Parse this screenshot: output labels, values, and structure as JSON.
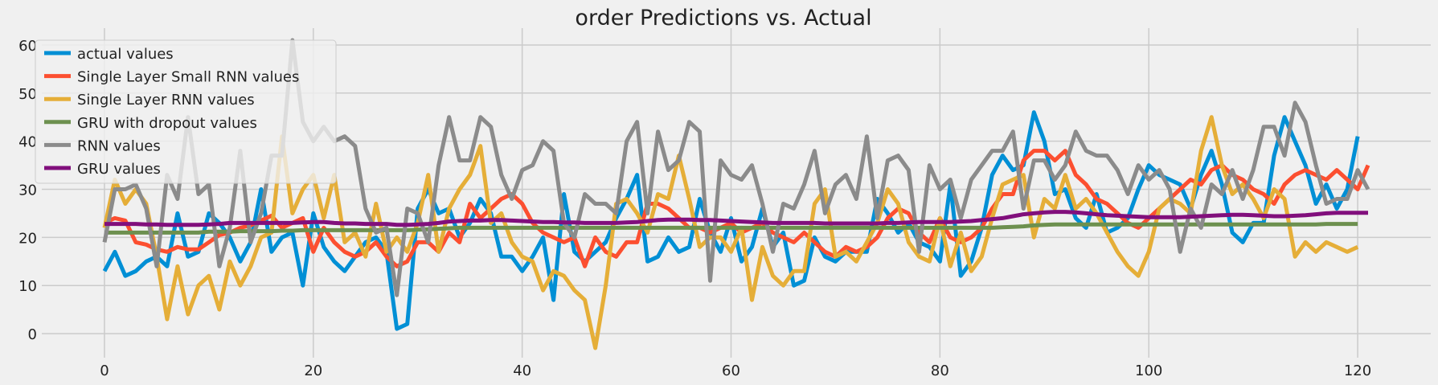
{
  "chart_data": {
    "type": "line",
    "title": "order Predictions vs. Actual",
    "xlabel": "",
    "ylabel": "",
    "xlim": [
      -6,
      127
    ],
    "ylim": [
      -5,
      63.5
    ],
    "xticks": [
      0,
      20,
      40,
      60,
      80,
      100,
      120
    ],
    "yticks": [
      0,
      10,
      20,
      30,
      40,
      50,
      60
    ],
    "grid": true,
    "legend_position": "top-left",
    "colors": {
      "background": "#f0f0f0",
      "grid": "#cbcbcb",
      "actual": "#008fd5",
      "small_rnn": "#fc4f30",
      "single_rnn": "#e5ae38",
      "gru_dropout": "#6d904f",
      "rnn": "#8b8b8b",
      "gru": "#810f7c"
    },
    "series": [
      {
        "name": "actual values",
        "color": "#008fd5",
        "values": [
          13,
          17,
          12,
          13,
          15,
          16,
          14,
          25,
          16,
          17,
          25,
          23,
          20,
          15,
          19,
          30,
          17,
          20,
          21,
          10,
          25,
          18,
          15,
          13,
          16,
          19,
          20,
          17,
          1,
          2,
          26,
          30,
          25,
          26,
          20,
          23,
          28,
          25,
          16,
          16,
          13,
          16,
          20,
          7,
          29,
          17,
          15,
          17,
          19,
          24,
          28,
          33,
          15,
          16,
          20,
          17,
          18,
          28,
          21,
          17,
          24,
          15,
          18,
          26,
          18,
          21,
          10,
          11,
          20,
          16,
          15,
          17,
          17,
          17,
          28,
          25,
          21,
          23,
          19,
          18,
          15,
          31,
          12,
          15,
          22,
          33,
          37,
          34,
          35,
          46,
          40,
          29,
          30,
          24,
          22,
          29,
          21,
          22,
          24,
          30,
          35,
          33,
          32,
          31,
          26,
          33,
          38,
          31,
          21,
          19,
          23,
          23,
          37,
          45,
          40,
          35,
          27,
          31,
          26,
          30,
          41
        ]
      },
      {
        "name": "Single Layer Small RNN values",
        "color": "#fc4f30",
        "values": [
          23,
          24,
          23.5,
          19,
          18.5,
          17.5,
          17,
          18,
          17.5,
          17.5,
          19,
          20.5,
          21,
          22,
          22.5,
          23.5,
          24.5,
          22,
          23,
          24,
          17,
          22,
          19,
          17,
          16,
          17,
          19,
          16,
          14,
          15,
          19,
          19,
          17,
          21,
          19,
          27,
          24,
          26,
          28,
          29,
          27,
          23,
          21,
          20,
          19,
          20,
          14,
          20,
          17,
          16,
          19,
          19,
          27,
          27,
          26,
          24,
          22,
          22,
          21,
          22,
          23,
          21,
          22,
          23,
          21,
          20,
          19,
          21,
          19,
          17,
          16,
          18,
          17,
          18,
          20,
          24,
          26,
          25,
          21,
          19,
          24,
          20,
          19,
          20,
          22,
          26,
          29,
          29,
          36,
          38,
          38,
          36,
          38,
          33,
          31,
          28,
          27,
          25,
          23,
          22,
          24,
          26,
          28,
          30,
          32,
          31,
          34,
          35,
          33,
          32,
          30,
          29,
          27,
          31,
          33,
          34,
          33,
          32,
          34,
          32,
          30,
          35
        ]
      },
      {
        "name": "Single Layer RNN values",
        "color": "#e5ae38",
        "values": [
          22,
          32,
          27,
          30,
          27,
          16,
          3,
          14,
          4,
          10,
          12,
          5,
          15,
          10,
          14,
          20,
          21,
          41,
          25,
          30,
          33,
          24,
          33,
          19,
          21,
          16,
          27,
          17,
          20,
          17,
          23,
          33,
          17,
          26,
          30,
          33,
          39,
          23,
          25,
          19,
          16,
          15,
          9,
          13,
          12,
          9,
          7,
          -3,
          10,
          27,
          28,
          25,
          21,
          29,
          28,
          37,
          28,
          18,
          20,
          20,
          17,
          22,
          7,
          18,
          12,
          10,
          13,
          13,
          27,
          30,
          16,
          17,
          15,
          19,
          23,
          30,
          27,
          19,
          16,
          15,
          24,
          14,
          21,
          13,
          16,
          24,
          31,
          32,
          33,
          20,
          28,
          26,
          33,
          26,
          28,
          25,
          21,
          17,
          14,
          12,
          17,
          26,
          28,
          27,
          25,
          38,
          45,
          35,
          29,
          31,
          28,
          24,
          30,
          28,
          16,
          19,
          17,
          19,
          18,
          17,
          18
        ]
      },
      {
        "name": "GRU with dropout values",
        "color": "#6d904f",
        "values": [
          21,
          21,
          21,
          21,
          21,
          21,
          21,
          21,
          21,
          21,
          21.2,
          21.2,
          21.2,
          21.3,
          21.3,
          21.3,
          21.3,
          21.4,
          21.4,
          21.5,
          21.5,
          21.5,
          21.5,
          21.5,
          21.5,
          21.5,
          21.5,
          21.5,
          21.5,
          21.5,
          21.6,
          21.7,
          21.8,
          21.9,
          22,
          22,
          22,
          22,
          22,
          22,
          22,
          22,
          22,
          22,
          22,
          22,
          22,
          22,
          22,
          22,
          22,
          22,
          22,
          22,
          22,
          22,
          22,
          22,
          22,
          22,
          22,
          22,
          22,
          22,
          22,
          22,
          22,
          22,
          22,
          22,
          22,
          22,
          22,
          22,
          22,
          22,
          22,
          22,
          22,
          22,
          22,
          22,
          22,
          22,
          22,
          22,
          22.1,
          22.2,
          22.3,
          22.5,
          22.6,
          22.7,
          22.7,
          22.7,
          22.7,
          22.7,
          22.7,
          22.7,
          22.7,
          22.7,
          22.7,
          22.7,
          22.7,
          22.7,
          22.7,
          22.7,
          22.7,
          22.7,
          22.7,
          22.7,
          22.7,
          22.7,
          22.7,
          22.7,
          22.7,
          22.7,
          22.7,
          22.8,
          22.8,
          22.8,
          22.8
        ]
      },
      {
        "name": "RNN values",
        "color": "#8b8b8b",
        "values": [
          19,
          30,
          30,
          31,
          26,
          14,
          33,
          28,
          45,
          29,
          31,
          14,
          22,
          38,
          19,
          25,
          37,
          37,
          61,
          44,
          40,
          43,
          40,
          41,
          39,
          26,
          21,
          22,
          8,
          26,
          25,
          19,
          35,
          45,
          36,
          36,
          45,
          43,
          33,
          28,
          34,
          35,
          40,
          38,
          23,
          20,
          29,
          27,
          27,
          25,
          40,
          44,
          25,
          42,
          34,
          36,
          44,
          42,
          11,
          36,
          33,
          32,
          35,
          27,
          17,
          27,
          26,
          31,
          38,
          25,
          31,
          33,
          28,
          41,
          24,
          36,
          37,
          34,
          17,
          35,
          30,
          32,
          24,
          32,
          35,
          38,
          38,
          42,
          26,
          36,
          36,
          32,
          35,
          42,
          38,
          37,
          37,
          34,
          29,
          35,
          32,
          34,
          30,
          17,
          26,
          22,
          31,
          29,
          34,
          28,
          34,
          43,
          43,
          37,
          48,
          44,
          35,
          27,
          28,
          28,
          34,
          30
        ]
      },
      {
        "name": "GRU values",
        "color": "#810f7c",
        "values": [
          22.8,
          22.8,
          22.8,
          22.8,
          22.7,
          22.7,
          22.6,
          22.6,
          22.6,
          22.6,
          22.7,
          22.8,
          23,
          23,
          23,
          23,
          23,
          23,
          23,
          23.1,
          23.2,
          23.2,
          23,
          22.9,
          22.9,
          22.8,
          22.8,
          22.8,
          22.6,
          22.6,
          22.7,
          22.8,
          23,
          23.3,
          23.4,
          23.5,
          23.5,
          23.6,
          23.6,
          23.5,
          23.4,
          23.3,
          23.2,
          23.2,
          23.1,
          23.1,
          23,
          23,
          23,
          23,
          23.1,
          23.2,
          23.4,
          23.6,
          23.7,
          23.7,
          23.7,
          23.6,
          23.6,
          23.5,
          23.4,
          23.3,
          23.2,
          23.1,
          23,
          23,
          23,
          23,
          23,
          22.9,
          22.9,
          22.9,
          22.9,
          22.9,
          22.9,
          23,
          23,
          23.1,
          23.2,
          23.2,
          23.2,
          23.2,
          23.3,
          23.4,
          23.6,
          23.8,
          24,
          24.4,
          24.8,
          25,
          25.2,
          25.3,
          25.3,
          25.2,
          25,
          24.8,
          24.6,
          24.5,
          24.4,
          24.3,
          24.2,
          24.2,
          24.2,
          24.2,
          24.3,
          24.4,
          24.5,
          24.6,
          24.7,
          24.7,
          24.6,
          24.5,
          24.4,
          24.4,
          24.5,
          24.6,
          24.8,
          25,
          25.1,
          25.1,
          25.1,
          25.1
        ]
      }
    ]
  }
}
